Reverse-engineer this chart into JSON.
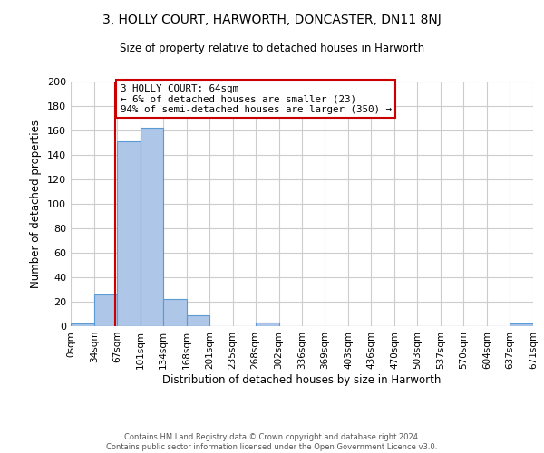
{
  "title": "3, HOLLY COURT, HARWORTH, DONCASTER, DN11 8NJ",
  "subtitle": "Size of property relative to detached houses in Harworth",
  "xlabel": "Distribution of detached houses by size in Harworth",
  "ylabel": "Number of detached properties",
  "bin_edges": [
    0,
    34,
    67,
    101,
    134,
    168,
    201,
    235,
    268,
    302,
    336,
    369,
    403,
    436,
    470,
    503,
    537,
    570,
    604,
    637,
    671
  ],
  "bin_labels": [
    "0sqm",
    "34sqm",
    "67sqm",
    "101sqm",
    "134sqm",
    "168sqm",
    "201sqm",
    "235sqm",
    "268sqm",
    "302sqm",
    "336sqm",
    "369sqm",
    "403sqm",
    "436sqm",
    "470sqm",
    "503sqm",
    "537sqm",
    "570sqm",
    "604sqm",
    "637sqm",
    "671sqm"
  ],
  "counts": [
    2,
    26,
    151,
    162,
    22,
    9,
    0,
    0,
    3,
    0,
    0,
    0,
    0,
    0,
    0,
    0,
    0,
    0,
    0,
    2
  ],
  "bar_color": "#aec6e8",
  "bar_edge_color": "#5b9bd5",
  "vline_x": 64,
  "vline_color": "#cc0000",
  "annotation_line1": "3 HOLLY COURT: 64sqm",
  "annotation_line2": "← 6% of detached houses are smaller (23)",
  "annotation_line3": "94% of semi-detached houses are larger (350) →",
  "annotation_box_color": "#cc0000",
  "ylim": [
    0,
    200
  ],
  "yticks": [
    0,
    20,
    40,
    60,
    80,
    100,
    120,
    140,
    160,
    180,
    200
  ],
  "footer_line1": "Contains HM Land Registry data © Crown copyright and database right 2024.",
  "footer_line2": "Contains public sector information licensed under the Open Government Licence v3.0.",
  "bg_color": "#ffffff",
  "grid_color": "#cccccc"
}
